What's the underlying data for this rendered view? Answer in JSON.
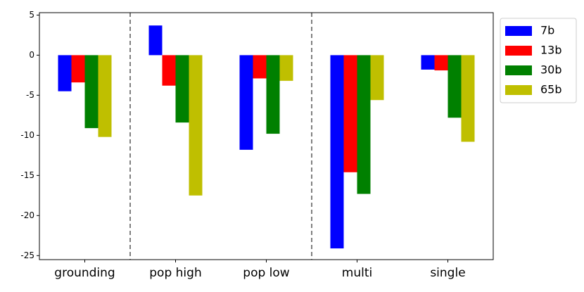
{
  "chart_data": {
    "type": "bar",
    "categories": [
      "grounding",
      "pop high",
      "pop low",
      "multi",
      "single"
    ],
    "series": [
      {
        "name": "7b",
        "color": "#0000ff",
        "values": [
          -4.5,
          3.7,
          -11.8,
          -24.1,
          -1.8
        ]
      },
      {
        "name": "13b",
        "color": "#ff0000",
        "values": [
          -3.4,
          -3.8,
          -2.9,
          -14.6,
          -1.9
        ]
      },
      {
        "name": "30b",
        "color": "#008000",
        "values": [
          -9.1,
          -8.4,
          -9.8,
          -17.3,
          -7.8
        ]
      },
      {
        "name": "65b",
        "color": "#bfbf00",
        "values": [
          -10.2,
          -17.5,
          -3.2,
          -5.6,
          -10.8
        ]
      }
    ],
    "ylim": [
      -25.5,
      5.3
    ],
    "yticks": [
      5,
      0,
      -5,
      -10,
      -15,
      -20,
      -25
    ],
    "separators": [
      0.5,
      2.5
    ],
    "legend": "outside-upper-right",
    "grid": false
  }
}
